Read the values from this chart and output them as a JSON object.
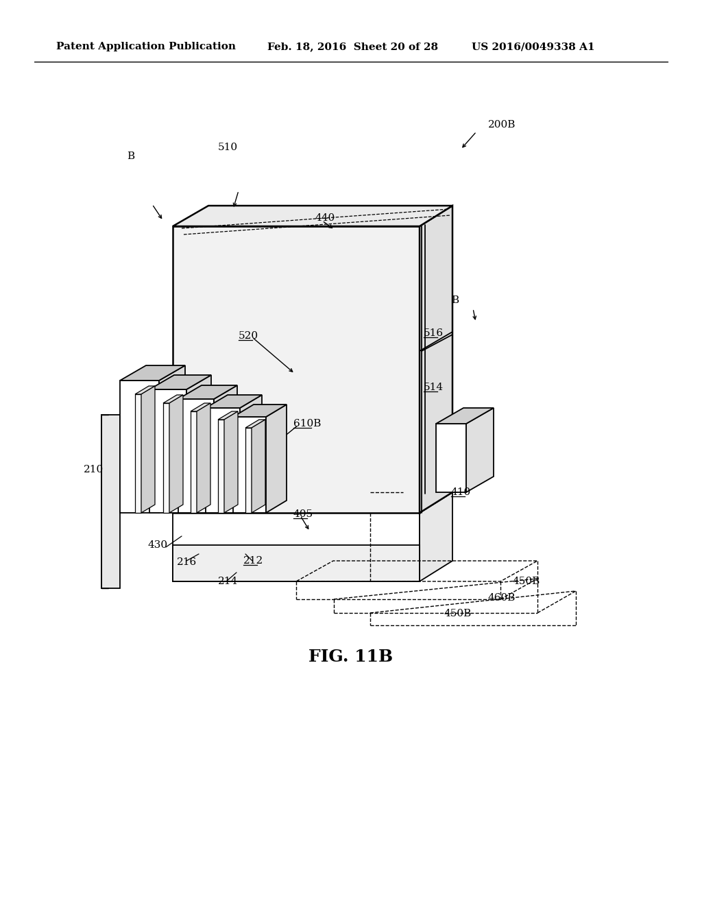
{
  "header_left": "Patent Application Publication",
  "header_mid": "Feb. 18, 2016  Sheet 20 of 28",
  "header_right": "US 2016/0049338 A1",
  "figure_label": "FIG. 11B",
  "bg_color": "#ffffff"
}
